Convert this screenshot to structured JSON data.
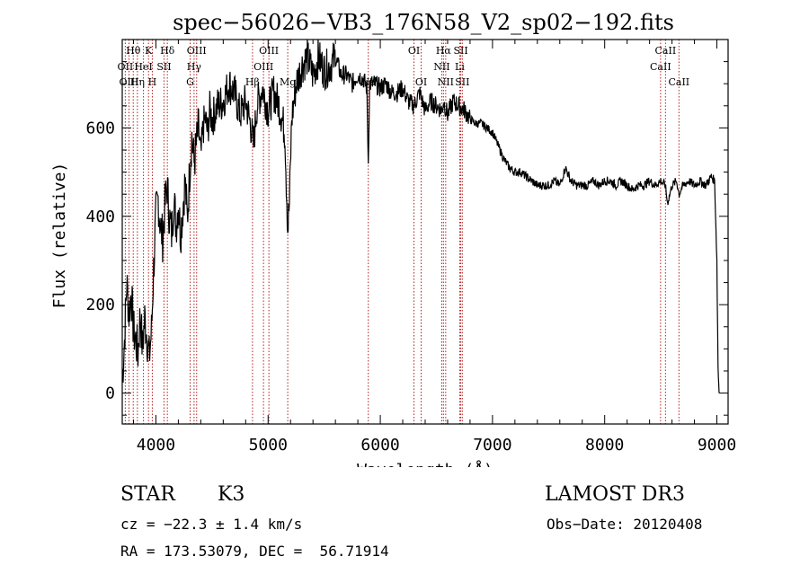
{
  "colors": {
    "ink": "#000000",
    "line_marker": "#b22222",
    "background": "#ffffff"
  },
  "chart_data": {
    "type": "line",
    "title": "spec−56026−VB3_176N58_V2_sp02−192.fits",
    "xlabel": "Wavelength (Å)",
    "ylabel": "Flux (relative)",
    "xlim": [
      3700,
      9100
    ],
    "ylim": [
      -70,
      800
    ],
    "xticks": [
      4000,
      5000,
      6000,
      7000,
      8000,
      9000
    ],
    "xtick_labels": [
      "4000",
      "5000",
      "6000",
      "7000",
      "8000",
      "9000"
    ],
    "yticks": [
      0,
      200,
      400,
      600
    ],
    "ytick_labels": [
      "0",
      "200",
      "400",
      "600"
    ],
    "series": [
      {
        "name": "flux",
        "x": [
          3700,
          3720,
          3740,
          3760,
          3780,
          3800,
          3820,
          3840,
          3860,
          3880,
          3900,
          3920,
          3940,
          3960,
          3980,
          4000,
          4020,
          4040,
          4060,
          4080,
          4100,
          4120,
          4140,
          4160,
          4180,
          4200,
          4220,
          4240,
          4260,
          4280,
          4300,
          4320,
          4340,
          4360,
          4380,
          4400,
          4420,
          4440,
          4460,
          4480,
          4500,
          4550,
          4600,
          4650,
          4700,
          4750,
          4800,
          4850,
          4870,
          4900,
          4950,
          5000,
          5050,
          5100,
          5150,
          5175,
          5190,
          5210,
          5250,
          5300,
          5350,
          5400,
          5450,
          5500,
          5550,
          5600,
          5650,
          5700,
          5750,
          5800,
          5850,
          5880,
          5893,
          5905,
          5950,
          6000,
          6050,
          6100,
          6150,
          6200,
          6250,
          6300,
          6350,
          6400,
          6450,
          6500,
          6550,
          6563,
          6600,
          6650,
          6700,
          6750,
          6800,
          6850,
          6900,
          6950,
          7000,
          7050,
          7100,
          7150,
          7200,
          7250,
          7300,
          7350,
          7400,
          7450,
          7500,
          7550,
          7600,
          7625,
          7650,
          7700,
          7750,
          7800,
          7850,
          7900,
          7950,
          8000,
          8050,
          8100,
          8150,
          8200,
          8250,
          8300,
          8350,
          8400,
          8450,
          8500,
          8540,
          8560,
          8600,
          8640,
          8664,
          8680,
          8700,
          8750,
          8800,
          8850,
          8900,
          8950,
          8980,
          9000,
          9010,
          9020
        ],
        "values": [
          30,
          120,
          250,
          180,
          230,
          140,
          120,
          90,
          180,
          100,
          170,
          130,
          80,
          140,
          280,
          400,
          440,
          380,
          350,
          420,
          470,
          400,
          360,
          440,
          380,
          430,
          360,
          420,
          480,
          390,
          500,
          580,
          520,
          560,
          600,
          530,
          600,
          620,
          590,
          640,
          620,
          650,
          660,
          700,
          680,
          630,
          660,
          600,
          560,
          650,
          690,
          640,
          680,
          650,
          590,
          370,
          430,
          620,
          700,
          740,
          760,
          720,
          760,
          730,
          740,
          760,
          720,
          720,
          700,
          720,
          710,
          690,
          520,
          700,
          700,
          690,
          700,
          680,
          680,
          690,
          660,
          650,
          680,
          640,
          660,
          650,
          640,
          660,
          630,
          660,
          650,
          640,
          620,
          610,
          610,
          600,
          590,
          560,
          530,
          510,
          500,
          500,
          490,
          480,
          470,
          470,
          470,
          480,
          470,
          490,
          510,
          480,
          470,
          470,
          470,
          480,
          470,
          480,
          480,
          470,
          480,
          470,
          460,
          470,
          470,
          480,
          470,
          480,
          470,
          430,
          470,
          480,
          450,
          460,
          470,
          480,
          470,
          480,
          470,
          490,
          480,
          300,
          60,
          0
        ]
      }
    ],
    "spectral_lines": [
      {
        "name": "Hθ",
        "wavelength": 3798,
        "row": 1
      },
      {
        "name": "OII",
        "wavelength": 3727,
        "row": 2
      },
      {
        "name": "OIII",
        "wavelength": 3760,
        "row": 3
      },
      {
        "name": "K",
        "wavelength": 3934,
        "row": 1
      },
      {
        "name": "HeI",
        "wavelength": 3889,
        "row": 2
      },
      {
        "name": "Hη",
        "wavelength": 3835,
        "row": 3
      },
      {
        "name": "Hδ",
        "wavelength": 4102,
        "row": 1
      },
      {
        "name": "SII",
        "wavelength": 4072,
        "row": 2
      },
      {
        "name": "H",
        "wavelength": 3968,
        "row": 3
      },
      {
        "name": "OIII",
        "wavelength": 4363,
        "row": 1
      },
      {
        "name": "Hγ",
        "wavelength": 4340,
        "row": 2
      },
      {
        "name": "G",
        "wavelength": 4305,
        "row": 3
      },
      {
        "name": "OIII",
        "wavelength": 5007,
        "row": 1
      },
      {
        "name": "OIII",
        "wavelength": 4959,
        "row": 2
      },
      {
        "name": "Hβ",
        "wavelength": 4861,
        "row": 3
      },
      {
        "name": "Mg",
        "wavelength": 5175,
        "row": 3
      },
      {
        "name": "Na",
        "wavelength": 5893,
        "row": 3
      },
      {
        "name": "OI",
        "wavelength": 6300,
        "row": 1
      },
      {
        "name": "OI",
        "wavelength": 6364,
        "row": 3
      },
      {
        "name": "Hα",
        "wavelength": 6563,
        "row": 1
      },
      {
        "name": "NII",
        "wavelength": 6548,
        "row": 2
      },
      {
        "name": "NII",
        "wavelength": 6583,
        "row": 3
      },
      {
        "name": "SII",
        "wavelength": 6717,
        "row": 1
      },
      {
        "name": "Li",
        "wavelength": 6708,
        "row": 2
      },
      {
        "name": "SII",
        "wavelength": 6731,
        "row": 3
      },
      {
        "name": "CaII",
        "wavelength": 8542,
        "row": 1
      },
      {
        "name": "CaII",
        "wavelength": 8498,
        "row": 2
      },
      {
        "name": "CaII",
        "wavelength": 8662,
        "row": 3
      }
    ]
  },
  "info": {
    "object_class": "STAR",
    "subclass": "K3",
    "survey": "LAMOST DR3",
    "redshift": "cz = −22.3 ± 1.4 km/s",
    "obs_date": "Obs−Date: 20120408",
    "coords": "RA = 173.53079, DEC =  56.71914"
  }
}
